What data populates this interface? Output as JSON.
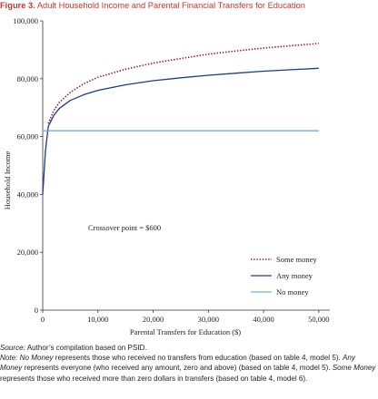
{
  "figure": {
    "label": "Figure 3.",
    "title": "Adult Household Income and Parental Financial Transfers for Education"
  },
  "chart_data": {
    "type": "line",
    "xlabel": "Parental Transfers for Education ($)",
    "ylabel": "Household Income",
    "xlim": [
      0,
      52000
    ],
    "ylim": [
      0,
      100000
    ],
    "x_ticks": [
      0,
      10000,
      20000,
      30000,
      40000,
      50000
    ],
    "x_tick_labels": [
      "0",
      "10,000",
      "20,000",
      "30,000",
      "40,000",
      "50,000"
    ],
    "y_ticks": [
      0,
      20000,
      40000,
      60000,
      80000,
      100000
    ],
    "y_tick_labels": [
      "0",
      "20,000",
      "40,000",
      "60,000",
      "80,000",
      "100,000"
    ],
    "grid": false,
    "legend_position": "right",
    "annotation": "Crossover point = $600",
    "series": [
      {
        "name": "Some money",
        "color": "#8b1a1a",
        "style": "dotted",
        "x": [
          1000,
          2000,
          3000,
          5000,
          7500,
          10000,
          15000,
          20000,
          25000,
          30000,
          35000,
          40000,
          45000,
          50000
        ],
        "y": [
          64500,
          69000,
          71800,
          75300,
          78300,
          80500,
          83300,
          85400,
          87000,
          88500,
          89600,
          90600,
          91400,
          92200
        ]
      },
      {
        "name": "Any money",
        "color": "#1f3a8a",
        "style": "solid",
        "x": [
          0,
          500,
          1000,
          2000,
          3000,
          5000,
          7500,
          10000,
          15000,
          20000,
          25000,
          30000,
          35000,
          40000,
          45000,
          50000
        ],
        "y": [
          40000,
          55000,
          63500,
          67300,
          69700,
          72500,
          74500,
          76000,
          77900,
          79300,
          80300,
          81200,
          81900,
          82600,
          83100,
          83600
        ]
      },
      {
        "name": "No money",
        "color": "#6bb0d8",
        "style": "solid",
        "x": [
          0,
          50000
        ],
        "y": [
          62000,
          62000
        ]
      }
    ]
  },
  "notes": {
    "source_label": "Source:",
    "source_text": " Author’s compilation based on PSID.",
    "note_label": "Note:",
    "t1": "No Money",
    "t2": " represents those who received no transfers from education (based on table 4, model 5). ",
    "t3": "Any Money",
    "t4": " represents everyone (who received any amount, zero and above) (based on table 4, model 5). ",
    "t5": "Some Money",
    "t6": " represents those who received more than zero dollars in transfers (based on table 4, model 6)."
  }
}
